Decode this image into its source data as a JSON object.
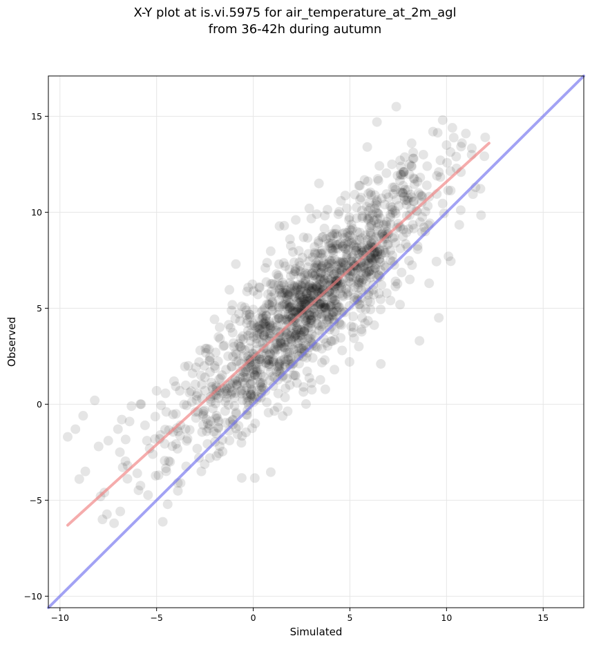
{
  "chart_data": {
    "type": "scatter",
    "title_line1": "X-Y plot at is.vi.5975 for air_temperature_at_2m_agl",
    "title_line2": "from 36-42h during autumn",
    "xlabel": "Simulated",
    "ylabel": "Observed",
    "xlim": [
      -10.6,
      17.1
    ],
    "ylim": [
      -10.6,
      17.1
    ],
    "xticks": [
      -10,
      -5,
      0,
      5,
      10,
      15
    ],
    "yticks": [
      -10,
      -5,
      0,
      5,
      10,
      15
    ],
    "xtick_labels": [
      "−10",
      "−5",
      "0",
      "5",
      "10",
      "15"
    ],
    "ytick_labels": [
      "−10",
      "−5",
      "0",
      "5",
      "10",
      "15"
    ],
    "grid": true,
    "series": [
      {
        "type": "scatter",
        "color": "#000000",
        "opacity": 0.1,
        "approx_point_count": 1500,
        "x": [
          -9.6,
          -9.2,
          -9.0,
          -8.8,
          -8.0,
          -7.8,
          -7.7,
          -7.5,
          -7.2,
          -7.0,
          -6.8,
          -6.5,
          -6.3,
          -6.0,
          -5.8,
          -5.5,
          -5.2,
          -5.0,
          -4.8,
          -4.5,
          -4.3,
          -4.0,
          -3.8,
          -3.5,
          -3.3,
          -3.0,
          -2.8,
          -2.5,
          -2.2,
          -2.0,
          -1.8,
          -1.5,
          -1.3,
          -1.0,
          -0.8,
          -0.5,
          -0.3,
          0.0,
          0.2,
          0.5,
          0.8,
          1.0,
          1.3,
          1.5,
          1.8,
          2.0,
          2.3,
          2.5,
          2.8,
          3.0,
          3.3,
          3.5,
          3.8,
          4.0,
          4.3,
          4.5,
          4.8,
          5.0,
          5.3,
          5.5,
          5.8,
          6.0,
          6.3,
          6.5,
          6.8,
          7.0,
          7.3,
          7.5,
          7.8,
          8.0,
          8.3,
          8.5,
          8.8,
          9.0,
          9.3,
          9.5,
          9.8,
          10.0,
          10.3,
          10.5,
          10.8,
          11.0,
          11.3,
          11.5,
          12.0,
          -8.2,
          -7.9,
          -6.9,
          -6.4,
          -5.6,
          -4.9,
          -4.1,
          -3.4,
          -2.7,
          -1.9,
          -1.1,
          -0.6,
          0.1,
          0.7,
          1.2,
          1.9,
          2.6,
          3.1,
          3.7,
          4.2,
          4.9,
          5.6,
          6.1,
          6.6,
          7.1,
          7.6,
          8.1,
          8.6,
          9.1,
          9.6,
          10.1,
          0.3,
          1.6,
          2.9,
          4.4,
          5.9,
          7.4,
          8.9,
          -0.9,
          -2.4,
          -3.9,
          3.4,
          4.6,
          2.2,
          1.1,
          6.4
        ],
        "y": [
          -1.7,
          -1.3,
          -3.9,
          -0.6,
          -2.2,
          -6.0,
          -4.6,
          -1.9,
          -6.2,
          -1.3,
          -0.8,
          -3.2,
          -0.1,
          -3.6,
          0.0,
          -1.9,
          -2.6,
          0.7,
          -1.6,
          -0.4,
          -3.0,
          -0.5,
          0.7,
          -1.3,
          0.6,
          -0.4,
          2.2,
          1.4,
          0.4,
          2.0,
          3.5,
          0.8,
          2.5,
          3.0,
          1.2,
          2.5,
          4.4,
          1.8,
          3.6,
          4.6,
          2.3,
          4.9,
          3.5,
          5.8,
          4.3,
          3.1,
          6.2,
          4.7,
          3.4,
          5.9,
          4.2,
          7.1,
          5.6,
          8.4,
          5.1,
          7.4,
          6.0,
          9.1,
          7.2,
          5.2,
          8.8,
          9.8,
          8.2,
          6.7,
          10.4,
          8.9,
          11.3,
          9.4,
          12.1,
          10.6,
          12.8,
          11.6,
          13.0,
          12.4,
          14.2,
          11.9,
          14.8,
          13.5,
          14.4,
          12.9,
          13.6,
          14.1,
          13.0,
          11.3,
          13.9,
          0.2,
          -4.8,
          -2.5,
          -0.9,
          -1.1,
          -3.7,
          1.2,
          -1.8,
          1.5,
          -2.7,
          0.6,
          5.1,
          -1.0,
          0.1,
          1.7,
          8.6,
          0.9,
          6.7,
          2.3,
          1.8,
          8.3,
          3.9,
          10.9,
          2.1,
          5.4,
          12.7,
          6.5,
          3.3,
          6.3,
          4.5,
          7.7,
          6.1,
          9.3,
          10.2,
          9.9,
          13.4,
          15.5,
          9.0,
          7.3,
          2.9,
          -4.1,
          11.5,
          2.8,
          9.6,
          1.4,
          14.7
        ],
        "sample_note_visible": ""
      },
      {
        "type": "line",
        "color": "#f08080",
        "opacity": 0.65,
        "x": [
          -9.6,
          12.2
        ],
        "y": [
          -6.3,
          13.6
        ]
      },
      {
        "type": "line",
        "color": "#7070ee",
        "opacity": 0.65,
        "x": [
          -10.6,
          17.1
        ],
        "y": [
          -10.6,
          17.1
        ]
      }
    ]
  }
}
